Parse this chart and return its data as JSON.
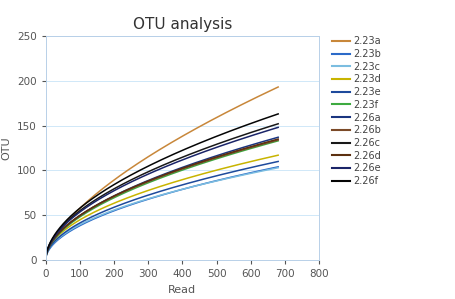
{
  "title": "OTU analysis",
  "xlabel": "Read",
  "ylabel": "OTU",
  "xlim": [
    0,
    800
  ],
  "ylim": [
    0,
    250
  ],
  "xticks": [
    0,
    100,
    200,
    300,
    400,
    500,
    600,
    700,
    800
  ],
  "yticks": [
    0,
    50,
    100,
    150,
    200,
    250
  ],
  "series": [
    {
      "label": "2.23a",
      "color": "#C8873A",
      "endpoint": 193,
      "power": 0.63
    },
    {
      "label": "2.23b",
      "color": "#2B6AC8",
      "endpoint": 104,
      "power": 0.52
    },
    {
      "label": "2.23c",
      "color": "#7BBDE0",
      "endpoint": 103,
      "power": 0.5
    },
    {
      "label": "2.23d",
      "color": "#C8B400",
      "endpoint": 117,
      "power": 0.5
    },
    {
      "label": "2.23e",
      "color": "#1E4A9C",
      "endpoint": 110,
      "power": 0.51
    },
    {
      "label": "2.23f",
      "color": "#3DAA40",
      "endpoint": 133,
      "power": 0.53
    },
    {
      "label": "2.26a",
      "color": "#1A3580",
      "endpoint": 137,
      "power": 0.53
    },
    {
      "label": "2.26b",
      "color": "#7B4A28",
      "endpoint": 134,
      "power": 0.52
    },
    {
      "label": "2.26c",
      "color": "#181818",
      "endpoint": 152,
      "power": 0.53
    },
    {
      "label": "2.26d",
      "color": "#5C3010",
      "endpoint": 135,
      "power": 0.52
    },
    {
      "label": "2.26e",
      "color": "#1A2468",
      "endpoint": 148,
      "power": 0.53
    },
    {
      "label": "2.26f",
      "color": "#050505",
      "endpoint": 163,
      "power": 0.54
    }
  ],
  "bg_color": "#FFFFFF",
  "grid_color": "#D0E8F8",
  "title_fontsize": 11,
  "label_fontsize": 8,
  "tick_fontsize": 7.5,
  "legend_fontsize": 7
}
